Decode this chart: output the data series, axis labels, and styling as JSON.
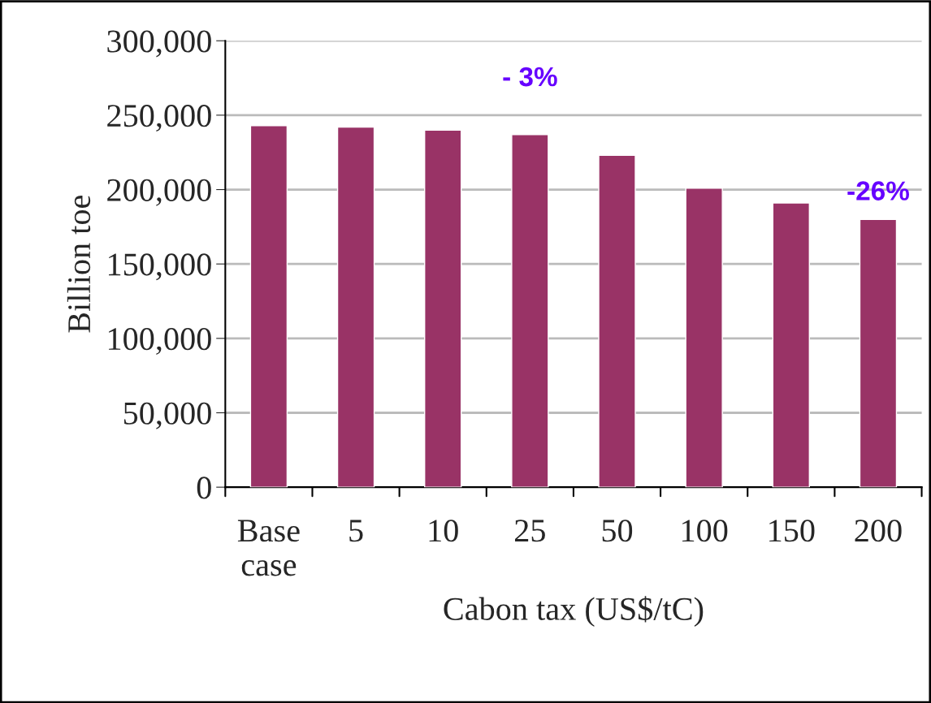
{
  "chart_data": {
    "type": "bar",
    "xlabel": "Cabon tax (US$/tC)",
    "ylabel": "Billion toe",
    "categories": [
      "Base\ncase",
      "5",
      "10",
      "25",
      "50",
      "100",
      "150",
      "200"
    ],
    "values": [
      243000,
      242000,
      240000,
      237000,
      223000,
      201000,
      191000,
      180000
    ],
    "color": "#993366",
    "ylim": [
      0,
      300000
    ],
    "yticks": [
      {
        "value": 0,
        "label": "0"
      },
      {
        "value": 50000,
        "label": "50,000"
      },
      {
        "value": 100000,
        "label": "100,000"
      },
      {
        "value": 150000,
        "label": "150,000"
      },
      {
        "value": 200000,
        "label": "200,000"
      },
      {
        "value": 250000,
        "label": "250,000"
      },
      {
        "value": 300000,
        "label": "300,000"
      }
    ],
    "grid": "y",
    "annotations": [
      {
        "text": "- 3%",
        "x": "25",
        "y": 237000
      },
      {
        "text": "-26%",
        "x": "200",
        "y": 180000
      }
    ]
  }
}
